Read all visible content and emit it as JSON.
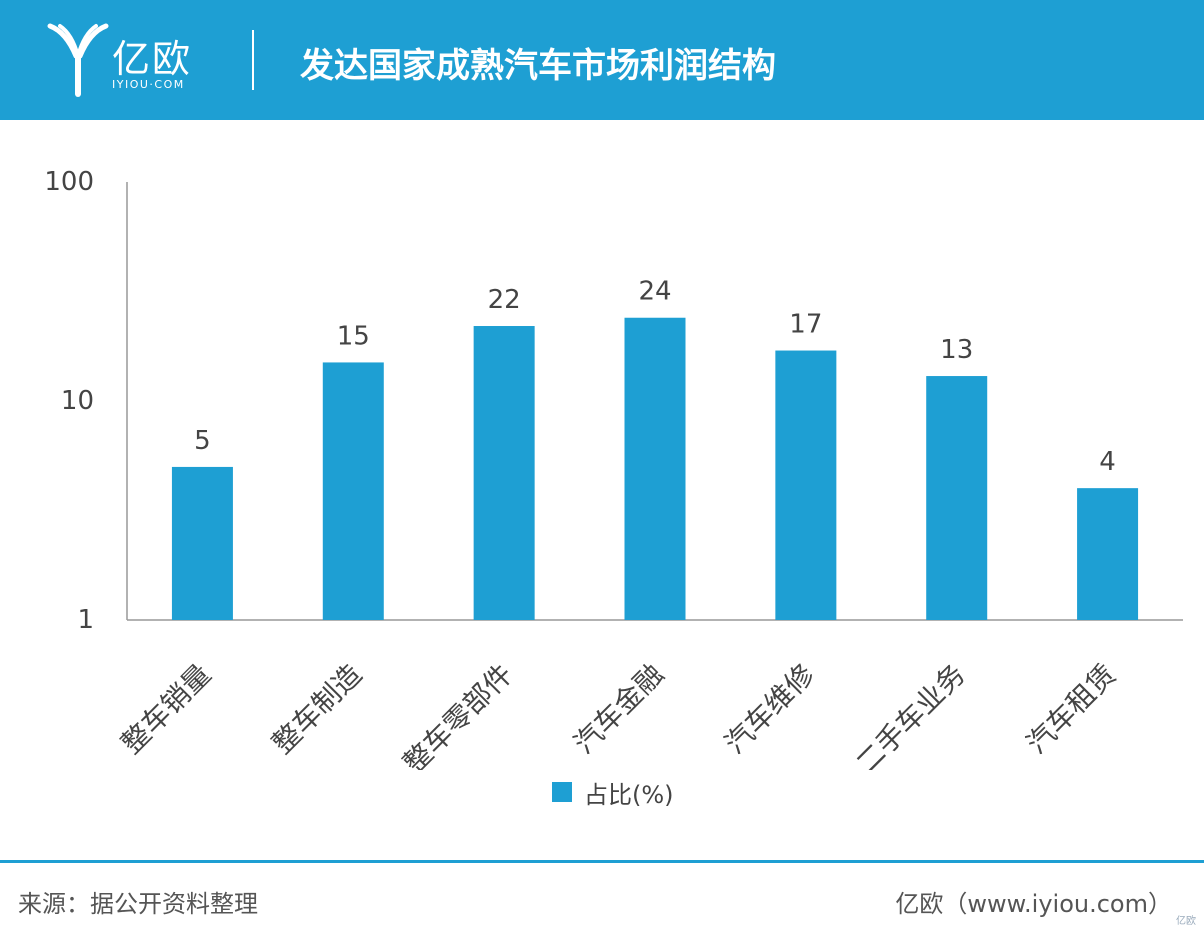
{
  "header": {
    "logo_text": "亿欧",
    "logo_sub": "IYIOU·COM",
    "title": "发达国家成熟汽车市场利润结构"
  },
  "colors": {
    "brand": "#1e9fd3",
    "axis": "#999999",
    "text": "#444444"
  },
  "chart_data": {
    "type": "bar",
    "title": "发达国家成熟汽车市场利润结构",
    "xlabel": "",
    "ylabel": "",
    "yscale": "log",
    "ylim": [
      1,
      100
    ],
    "yticks": [
      "1",
      "10",
      "100"
    ],
    "grid": false,
    "legend_position": "bottom",
    "categories": [
      "整车销量",
      "整车制造",
      "整车零部件",
      "汽车金融",
      "汽车维修",
      "二手车业务",
      "汽车租赁"
    ],
    "series": [
      {
        "name": "占比(%)",
        "values": [
          5,
          15,
          22,
          24,
          17,
          13,
          4
        ],
        "color": "#1e9fd3"
      }
    ]
  },
  "footer": {
    "source": "来源：据公开资料整理",
    "credit": "亿欧（www.iyiou.com）",
    "corner_mark": "亿欧"
  }
}
